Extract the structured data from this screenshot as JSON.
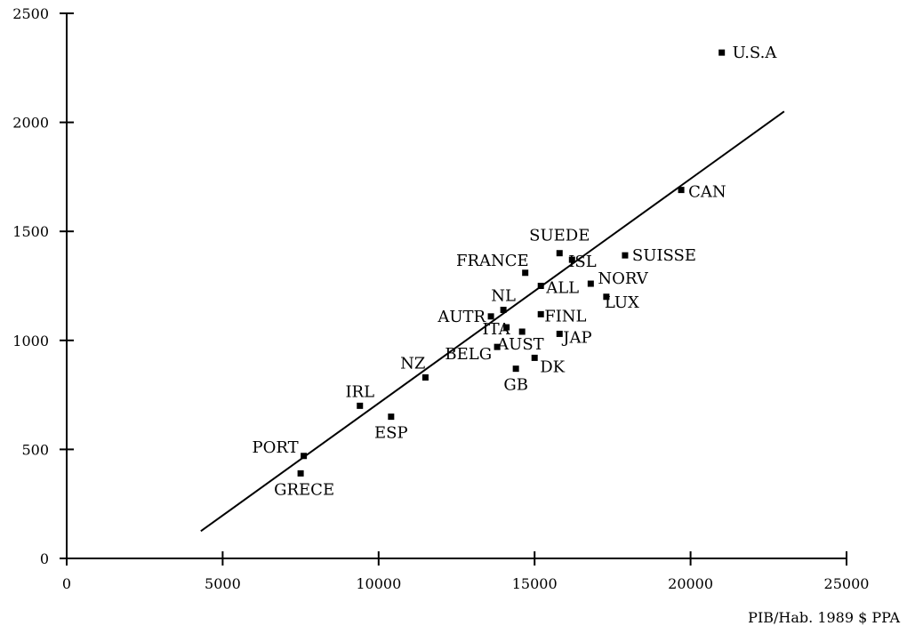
{
  "chart_data": {
    "type": "scatter",
    "title": "",
    "xlabel": "PIB/Hab. 1989 $ PPA",
    "ylabel": "",
    "xlim": [
      0,
      25000
    ],
    "ylim": [
      0,
      2500
    ],
    "xticks": [
      0,
      5000,
      10000,
      15000,
      20000,
      25000
    ],
    "yticks": [
      0,
      500,
      1000,
      1500,
      2000,
      2500
    ],
    "grid": false,
    "legend": "none",
    "colors": {
      "ink": "#000000",
      "background": "#ffffff"
    },
    "points": [
      {
        "label": "U.S.A",
        "x": 21000,
        "y": 2320
      },
      {
        "label": "CAN",
        "x": 19700,
        "y": 1690
      },
      {
        "label": "SUISSE",
        "x": 17900,
        "y": 1390
      },
      {
        "label": "SUEDE",
        "x": 15800,
        "y": 1400
      },
      {
        "label": "ISL",
        "x": 16200,
        "y": 1370
      },
      {
        "label": "FRANCE",
        "x": 14700,
        "y": 1310
      },
      {
        "label": "NORV",
        "x": 16800,
        "y": 1260
      },
      {
        "label": "ALL",
        "x": 15200,
        "y": 1250
      },
      {
        "label": "LUX",
        "x": 17300,
        "y": 1200
      },
      {
        "label": "NL",
        "x": 14000,
        "y": 1140
      },
      {
        "label": "AUTR",
        "x": 13600,
        "y": 1110
      },
      {
        "label": "FINL",
        "x": 15200,
        "y": 1120
      },
      {
        "label": "ITA",
        "x": 14100,
        "y": 1060
      },
      {
        "label": "AUST",
        "x": 14600,
        "y": 1040
      },
      {
        "label": "JAP",
        "x": 15800,
        "y": 1030
      },
      {
        "label": "BELG",
        "x": 13800,
        "y": 970
      },
      {
        "label": "DK",
        "x": 15000,
        "y": 920
      },
      {
        "label": "GB",
        "x": 14400,
        "y": 870
      },
      {
        "label": "NZ",
        "x": 11500,
        "y": 830
      },
      {
        "label": "IRL",
        "x": 9400,
        "y": 700
      },
      {
        "label": "ESP",
        "x": 10400,
        "y": 650
      },
      {
        "label": "PORT",
        "x": 7600,
        "y": 470
      },
      {
        "label": "GRECE",
        "x": 7500,
        "y": 390
      }
    ],
    "trendline": {
      "x": [
        4300,
        23000
      ],
      "y": [
        125,
        2050
      ]
    }
  }
}
